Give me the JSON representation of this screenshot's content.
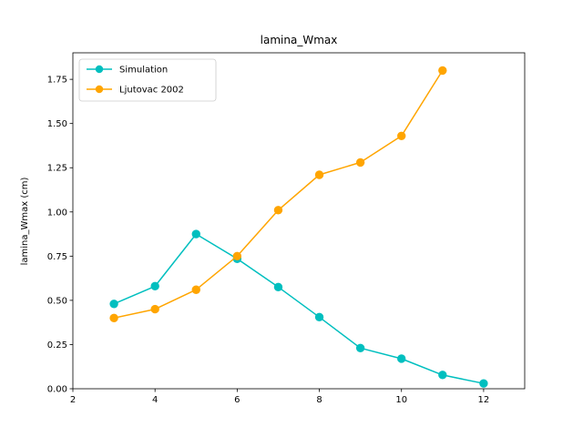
{
  "chart_data": {
    "type": "line",
    "title": "lamina_Wmax",
    "xlabel": "",
    "ylabel": "lamina_Wmax (cm)",
    "xlim": [
      2,
      13
    ],
    "ylim": [
      0,
      1.9
    ],
    "xticks": [
      2,
      4,
      6,
      8,
      10,
      12
    ],
    "yticks": [
      0.0,
      0.25,
      0.5,
      0.75,
      1.0,
      1.25,
      1.5,
      1.75
    ],
    "xtick_labels": [
      "2",
      "4",
      "6",
      "8",
      "10",
      "12"
    ],
    "ytick_labels": [
      "0.00",
      "0.25",
      "0.50",
      "0.75",
      "1.00",
      "1.25",
      "1.50",
      "1.75"
    ],
    "grid": false,
    "legend_position": "top-left",
    "series": [
      {
        "name": "Simulation",
        "color": "#00bfbf",
        "x": [
          3,
          4,
          5,
          6,
          7,
          8,
          9,
          10,
          11,
          12
        ],
        "y": [
          0.48,
          0.58,
          0.875,
          0.735,
          0.575,
          0.405,
          0.23,
          0.17,
          0.078,
          0.03
        ]
      },
      {
        "name": "Ljutovac 2002",
        "color": "#ffa500",
        "x": [
          3,
          4,
          5,
          6,
          7,
          8,
          9,
          10,
          11
        ],
        "y": [
          0.4,
          0.45,
          0.56,
          0.75,
          1.01,
          1.21,
          1.28,
          1.43,
          1.8
        ]
      }
    ]
  }
}
